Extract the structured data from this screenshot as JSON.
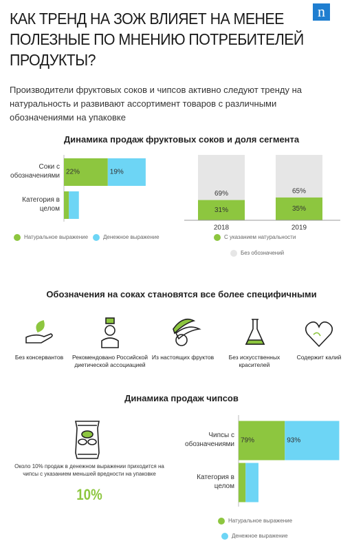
{
  "header": {
    "logo": "n",
    "title": "КАК ТРЕНД НА ЗОЖ ВЛИЯЕТ НА МЕНЕЕ ПОЛЕЗНЫЕ ПО МНЕНИЮ ПОТРЕБИТЕЛЕЙ ПРОДУКТЫ?",
    "intro": "Производители фруктовых соков и чипсов активно следуют тренду на натуральность и развивают ассортимент товаров с различными обозначениями на упаковке"
  },
  "section_juice": {
    "title": "Динамика продаж фруктовых соков и доля сегмента"
  },
  "section_labels": {
    "title": "Обозначения на соках становятся все более специфичными",
    "items": [
      "Без консервантов",
      "Рекомендовано Российской диетической ассоциацией",
      "Из настоящих фруктов",
      "Без искусственных красителей",
      "Содержит калий"
    ]
  },
  "section_chips": {
    "title": "Динамика продаж чипсов",
    "note": "Около 10% продаж в денежном выражении приходится на чипсы с указанием меньшей вредности на упаковке",
    "highlight": "10%"
  },
  "chart_data": [
    {
      "type": "bar",
      "orientation": "horizontal",
      "stacked": true,
      "categories": [
        "Соки с обозначениями",
        "Категория в целом"
      ],
      "xlim": [
        0,
        60
      ],
      "series": [
        {
          "name": "Натуральное выражение",
          "color": "#8dc63f",
          "values": [
            22,
            2.5
          ],
          "value_labels": [
            "22%",
            null
          ]
        },
        {
          "name": "Денежное выражение",
          "color": "#6dd5f5",
          "values": [
            19,
            5
          ],
          "value_labels": [
            "19%",
            null
          ]
        }
      ]
    },
    {
      "type": "bar",
      "orientation": "vertical",
      "stacked": true,
      "categories": [
        "2018",
        "2019"
      ],
      "ylim": [
        0,
        100
      ],
      "series": [
        {
          "name": "С указанием натуральности",
          "color": "#8dc63f",
          "values": [
            31,
            35
          ],
          "value_labels": [
            "31%",
            "35%"
          ]
        },
        {
          "name": "Без обозначений",
          "color": "#e6e6e6",
          "values": [
            69,
            65
          ],
          "value_labels": [
            "69%",
            "65%"
          ]
        }
      ]
    },
    {
      "type": "bar",
      "orientation": "horizontal",
      "stacked": true,
      "categories": [
        "Чипсы с обозначениями",
        "Категория в целом"
      ],
      "xlim": [
        0,
        175
      ],
      "series": [
        {
          "name": "Натуральное выражение",
          "color": "#8dc63f",
          "values": [
            79,
            12
          ],
          "value_labels": [
            "79%",
            null
          ]
        },
        {
          "name": "Денежное выражение",
          "color": "#6dd5f5",
          "values": [
            93,
            22
          ],
          "value_labels": [
            "93%",
            null
          ]
        }
      ]
    }
  ]
}
